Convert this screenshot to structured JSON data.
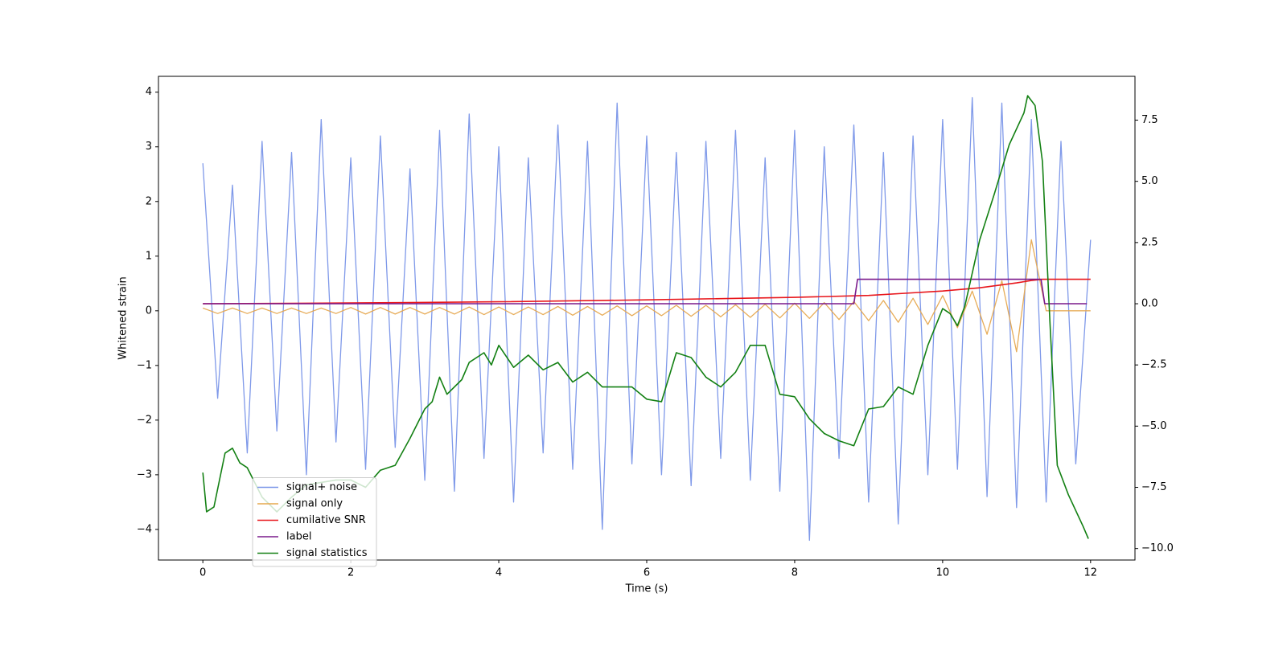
{
  "chart_data": {
    "type": "line",
    "xlabel": "Time (s)",
    "ylabel": "Whitened strain",
    "xlim": [
      -0.6,
      12.6
    ],
    "ylim": [
      -4.56,
      4.29
    ],
    "y2lim": [
      -10.47,
      9.29
    ],
    "xticks": [
      0,
      2,
      4,
      6,
      8,
      10,
      12
    ],
    "yticks": [
      {
        "value": -4,
        "label": "−4"
      },
      {
        "value": -3,
        "label": "−3"
      },
      {
        "value": -2,
        "label": "−2"
      },
      {
        "value": -1,
        "label": "−1"
      },
      0,
      1,
      2,
      3,
      4
    ],
    "y2ticks": [
      {
        "value": -10,
        "label": "−10.0"
      },
      {
        "value": -7.5,
        "label": "−7.5"
      },
      {
        "value": -5,
        "label": "−5.0"
      },
      {
        "value": -2.5,
        "label": "−2.5"
      },
      {
        "value": 0,
        "label": "0.0"
      },
      2.5,
      {
        "value": 5,
        "label": "5.0"
      },
      7.5
    ],
    "legend": "lower left",
    "x": [
      0,
      0.2,
      0.4,
      0.6,
      0.8,
      1,
      1.2,
      1.4,
      1.6,
      1.8,
      2,
      2.2,
      2.4,
      2.6,
      2.8,
      3,
      3.2,
      3.4,
      3.6,
      3.8,
      4,
      4.2,
      4.4,
      4.6,
      4.8,
      5,
      5.2,
      5.4,
      5.6,
      5.8,
      6,
      6.2,
      6.4,
      6.6,
      6.8,
      7,
      7.2,
      7.4,
      7.6,
      7.8,
      8,
      8.2,
      8.4,
      8.6,
      8.8,
      9,
      9.2,
      9.4,
      9.6,
      9.8,
      10,
      10.2,
      10.4,
      10.6,
      10.8,
      11,
      11.2,
      11.4,
      11.6,
      11.8,
      12
    ],
    "series": [
      {
        "name": "signal+ noise",
        "color": "#7894e8",
        "values": [
          2.7,
          -1.6,
          2.3,
          -2.6,
          3.1,
          -2.2,
          2.9,
          -3.0,
          3.5,
          -2.4,
          2.8,
          -2.9,
          3.2,
          -2.5,
          2.6,
          -3.1,
          3.3,
          -3.3,
          3.6,
          -2.7,
          3.0,
          -3.5,
          2.8,
          -2.6,
          3.4,
          -2.9,
          3.1,
          -4.0,
          3.8,
          -2.8,
          3.2,
          -3.0,
          2.9,
          -3.2,
          3.1,
          -2.7,
          3.3,
          -3.1,
          2.8,
          -3.3,
          3.3,
          -4.2,
          3.0,
          -2.7,
          3.4,
          -3.5,
          2.9,
          -3.9,
          3.2,
          -3.0,
          3.5,
          -2.9,
          3.9,
          -3.4,
          3.8,
          -3.6,
          3.5,
          -3.5,
          3.1,
          -2.8,
          1.3
        ]
      },
      {
        "name": "signal only",
        "color": "#e6a84f",
        "values": [
          0.05,
          -0.05,
          0.05,
          -0.05,
          0.05,
          -0.05,
          0.05,
          -0.05,
          0.05,
          -0.05,
          0.06,
          -0.06,
          0.06,
          -0.06,
          0.06,
          -0.06,
          0.06,
          -0.06,
          0.07,
          -0.07,
          0.07,
          -0.07,
          0.07,
          -0.07,
          0.08,
          -0.08,
          0.08,
          -0.08,
          0.09,
          -0.09,
          0.09,
          -0.09,
          0.1,
          -0.1,
          0.1,
          -0.11,
          0.11,
          -0.12,
          0.12,
          -0.13,
          0.14,
          -0.14,
          0.15,
          -0.16,
          0.17,
          -0.18,
          0.19,
          -0.21,
          0.23,
          -0.25,
          0.28,
          -0.31,
          0.36,
          -0.43,
          0.55,
          -0.75,
          1.3,
          0,
          0,
          0,
          0
        ]
      },
      {
        "name": "cumilative SNR",
        "color": "#e8161b",
        "axis": "y2",
        "x": [
          0,
          2,
          4,
          6,
          8,
          9,
          10,
          10.5,
          11,
          11.2,
          11.35,
          12
        ],
        "values": [
          0,
          0.03,
          0.08,
          0.16,
          0.26,
          0.34,
          0.52,
          0.65,
          0.85,
          0.95,
          1.0,
          1.0
        ]
      },
      {
        "name": "label",
        "color": "#7a1a8c",
        "axis": "y2",
        "x": [
          0,
          8.8,
          8.85,
          11.33,
          11.38,
          11.95
        ],
        "values": [
          0,
          0,
          1,
          1,
          0,
          0
        ]
      },
      {
        "name": "signal statistics",
        "color": "#138013",
        "axis": "y2",
        "x": [
          0,
          0.05,
          0.15,
          0.3,
          0.4,
          0.5,
          0.6,
          0.8,
          1.0,
          1.2,
          1.4,
          1.6,
          1.8,
          2.0,
          2.2,
          2.4,
          2.6,
          2.8,
          3.0,
          3.1,
          3.2,
          3.3,
          3.5,
          3.6,
          3.8,
          3.9,
          4.0,
          4.2,
          4.4,
          4.6,
          4.8,
          5.0,
          5.2,
          5.4,
          5.6,
          5.8,
          6.0,
          6.2,
          6.4,
          6.6,
          6.8,
          7.0,
          7.2,
          7.4,
          7.6,
          7.8,
          8.0,
          8.2,
          8.4,
          8.6,
          8.8,
          9.0,
          9.2,
          9.4,
          9.6,
          9.8,
          10.0,
          10.1,
          10.2,
          10.3,
          10.5,
          10.7,
          10.9,
          11.1,
          11.15,
          11.25,
          11.35,
          11.45,
          11.55,
          11.7,
          11.9,
          11.97
        ],
        "values": [
          -6.9,
          -8.5,
          -8.3,
          -6.1,
          -5.9,
          -6.5,
          -6.7,
          -7.9,
          -8.5,
          -7.9,
          -7.4,
          -7.3,
          -7.2,
          -7.2,
          -7.5,
          -6.8,
          -6.6,
          -5.5,
          -4.3,
          -4.0,
          -3.0,
          -3.7,
          -3.1,
          -2.4,
          -2.0,
          -2.5,
          -1.7,
          -2.6,
          -2.1,
          -2.7,
          -2.4,
          -3.2,
          -2.8,
          -3.4,
          -3.4,
          -3.4,
          -3.9,
          -4.0,
          -2.0,
          -2.2,
          -3.0,
          -3.4,
          -2.8,
          -1.7,
          -1.7,
          -3.7,
          -3.8,
          -4.7,
          -5.3,
          -5.6,
          -5.8,
          -4.3,
          -4.2,
          -3.4,
          -3.7,
          -1.7,
          -0.2,
          -0.4,
          -0.9,
          -0.1,
          2.6,
          4.5,
          6.5,
          7.8,
          8.5,
          8.1,
          5.8,
          -0.7,
          -6.6,
          -7.8,
          -9.1,
          -9.6
        ]
      }
    ]
  }
}
